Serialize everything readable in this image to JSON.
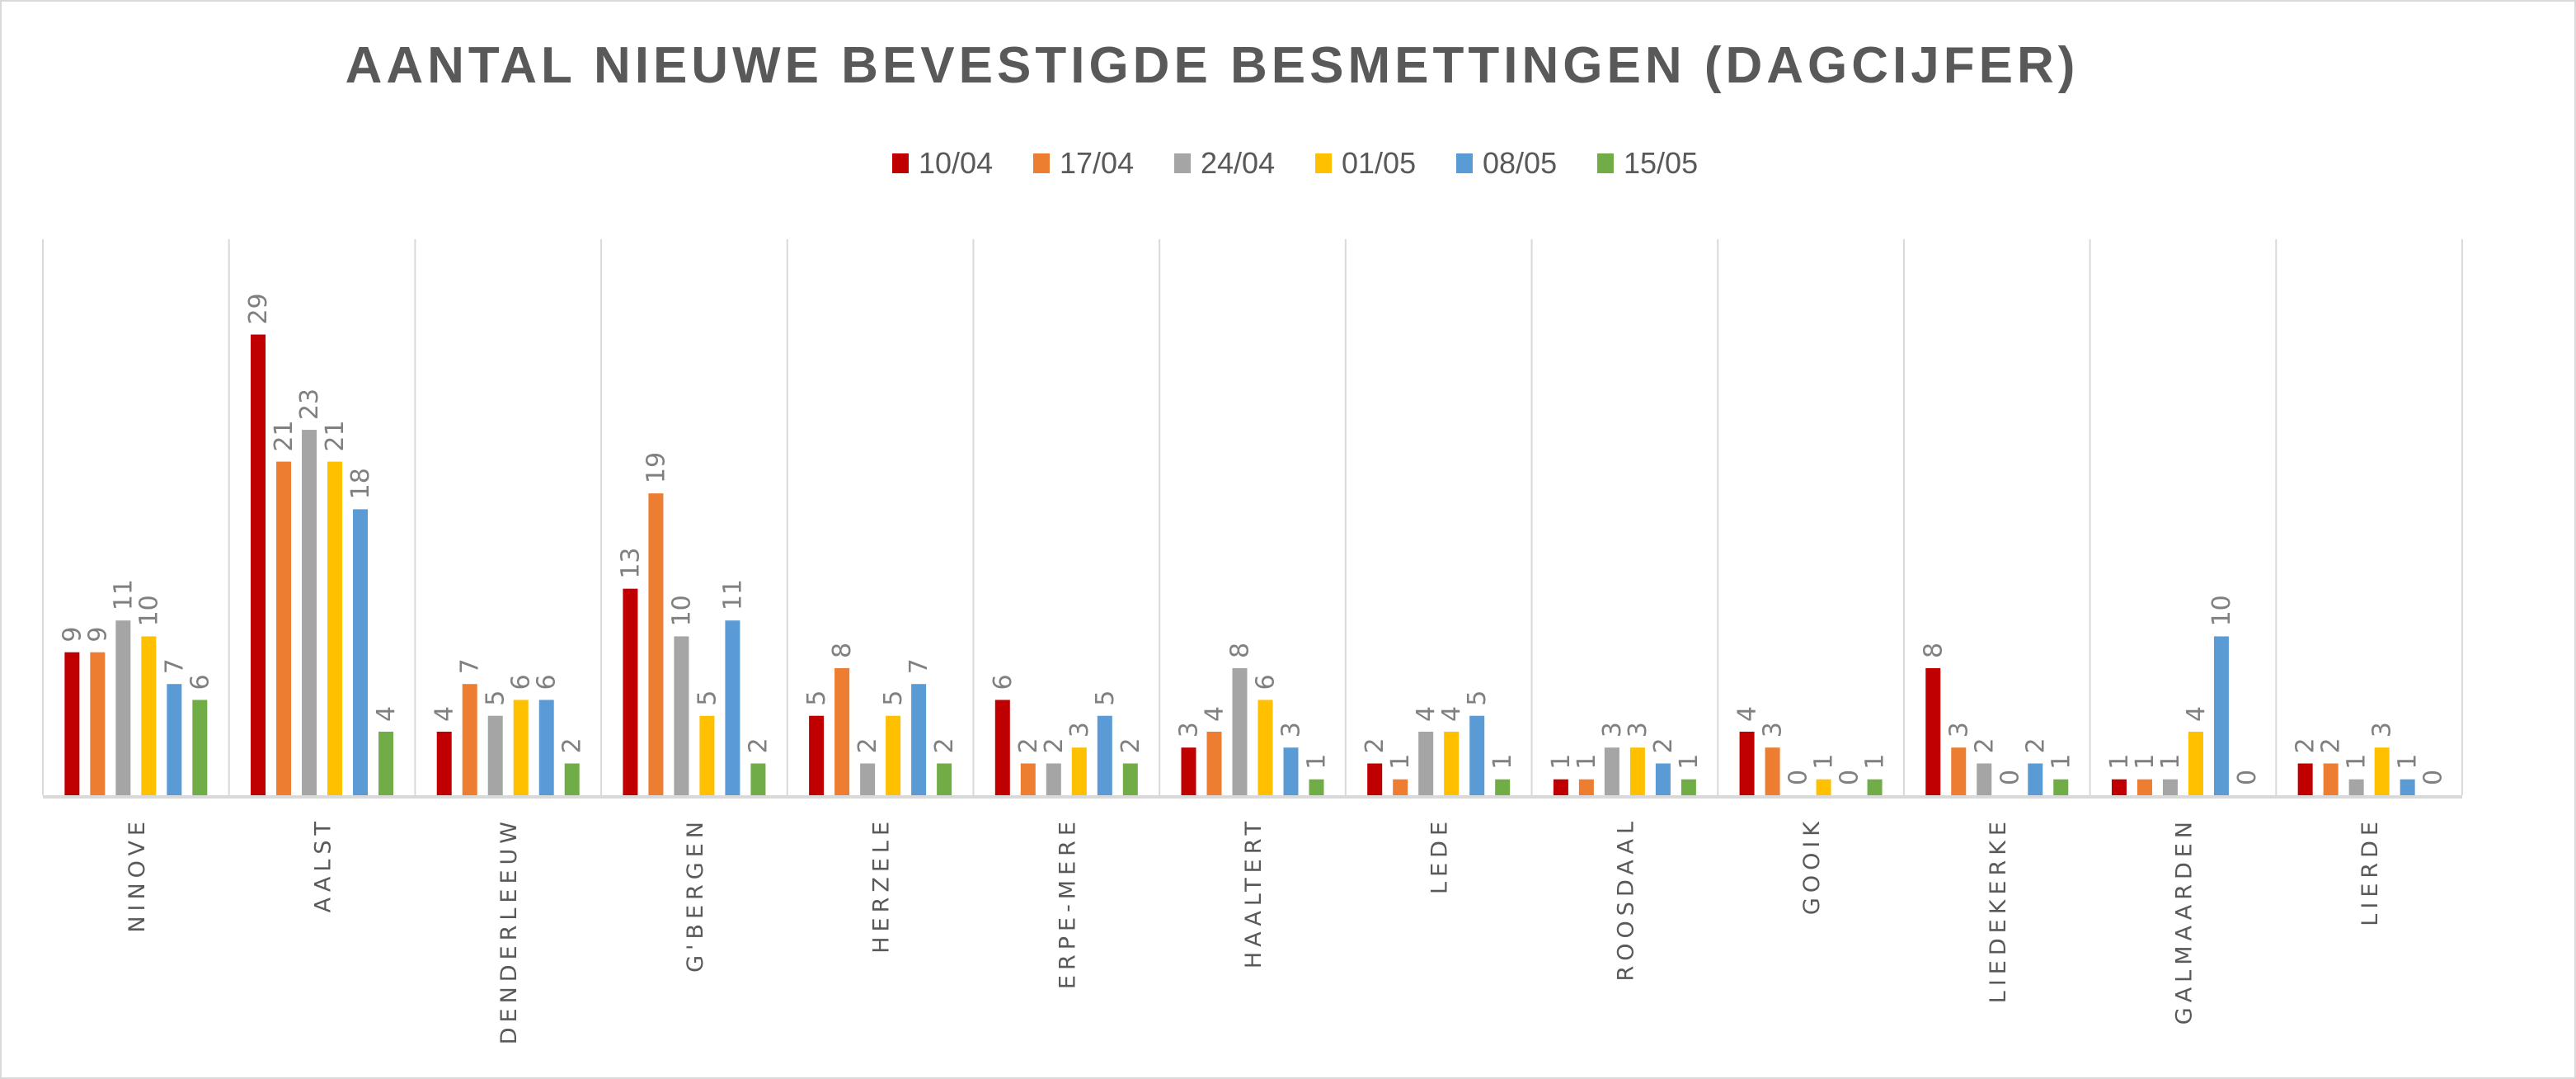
{
  "chart_data": {
    "type": "bar",
    "title": "AANTAL NIEUWE BEVESTIGDE BESMETTINGEN (DAGCIJFER)",
    "xlabel": "",
    "ylabel": "",
    "ylim": [
      0,
      35
    ],
    "grid": "vertical category separators",
    "legend_position": "top-center",
    "categories": [
      "NINOVE",
      "AALST",
      "DENDERLEEUW",
      "G'BERGEN",
      "HERZELE",
      "ERPE-MERE",
      "HAALTERT",
      "LEDE",
      "ROOSDAAL",
      "GOOIK",
      "LIEDEKERKE",
      "GALMAARDEN",
      "LIERDE"
    ],
    "series": [
      {
        "name": "10/04",
        "color": "#C00000",
        "values": [
          9,
          29,
          4,
          13,
          5,
          6,
          3,
          2,
          1,
          4,
          8,
          1,
          2
        ]
      },
      {
        "name": "17/04",
        "color": "#ED7D31",
        "values": [
          9,
          21,
          7,
          19,
          8,
          2,
          4,
          1,
          1,
          3,
          3,
          1,
          2
        ]
      },
      {
        "name": "24/04",
        "color": "#A5A5A5",
        "values": [
          11,
          23,
          5,
          10,
          2,
          2,
          8,
          4,
          3,
          0,
          2,
          1,
          1
        ]
      },
      {
        "name": "01/05",
        "color": "#FFC000",
        "values": [
          10,
          21,
          6,
          5,
          5,
          3,
          6,
          4,
          3,
          1,
          0,
          4,
          3
        ]
      },
      {
        "name": "08/05",
        "color": "#5B9BD5",
        "values": [
          7,
          18,
          6,
          11,
          7,
          5,
          3,
          5,
          2,
          0,
          2,
          10,
          1
        ]
      },
      {
        "name": "15/05",
        "color": "#70AD47",
        "values": [
          6,
          4,
          2,
          2,
          2,
          2,
          1,
          1,
          1,
          1,
          1,
          0,
          0
        ]
      }
    ]
  }
}
